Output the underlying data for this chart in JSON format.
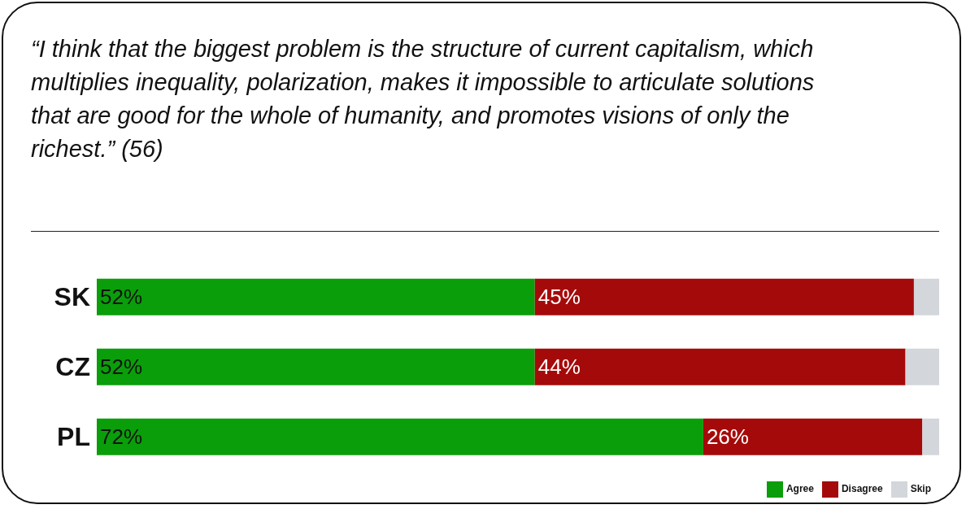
{
  "chart_data": {
    "type": "bar",
    "orientation": "horizontal",
    "stacked": true,
    "title": "“I think that the biggest problem is the structure of current capitalism, which multiplies inequality, polarization, makes it impossible to articulate solutions that are good for the whole of humanity, and promotes visions of only the richest.” (56)",
    "categories": [
      "SK",
      "CZ",
      "PL"
    ],
    "series": [
      {
        "name": "Agree",
        "color": "#0a9e0a",
        "values": [
          52,
          52,
          72
        ],
        "value_labels": [
          "52%",
          "52%",
          "72%"
        ]
      },
      {
        "name": "Disagree",
        "color": "#a50a0a",
        "values": [
          45,
          44,
          26
        ],
        "value_labels": [
          "45%",
          "44%",
          "26%"
        ]
      },
      {
        "name": "Skip",
        "color": "#d3d6da",
        "values": [
          3,
          4,
          2
        ],
        "value_labels": [
          null,
          null,
          null
        ]
      }
    ],
    "tick_labels": "y",
    "legend": "bottom right"
  }
}
